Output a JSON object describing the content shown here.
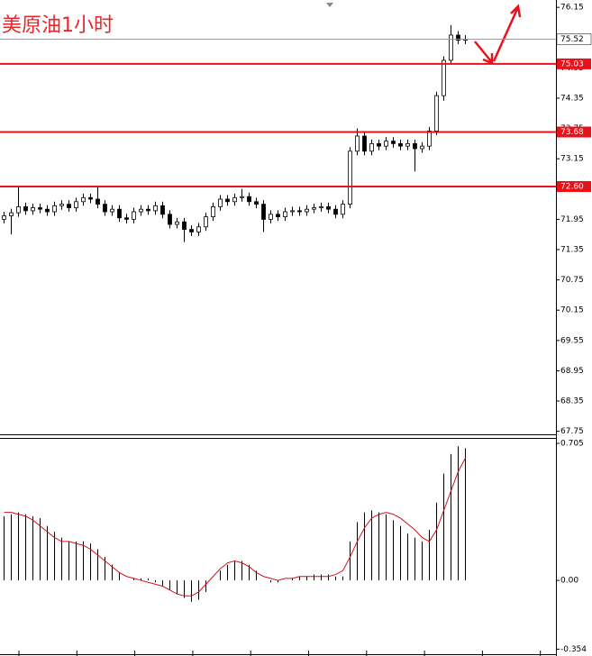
{
  "chart_data": [
    {
      "type": "candlestick",
      "title": "美原油1小时",
      "title_color": "#e8272a",
      "open": [
        71.95,
        72.02,
        72.08,
        72.2,
        72.12,
        72.18,
        72.15,
        72.1,
        72.22,
        72.25,
        72.18,
        72.3,
        72.38,
        72.35,
        72.25,
        72.1,
        72.15,
        71.98,
        71.95,
        72.1,
        72.15,
        72.12,
        72.22,
        72.05,
        71.85,
        71.9,
        71.75,
        71.7,
        71.8,
        72.0,
        72.2,
        72.35,
        72.3,
        72.38,
        72.4,
        72.3,
        72.25,
        71.95,
        72.05,
        72.0,
        72.1,
        72.12,
        72.1,
        72.15,
        72.18,
        72.2,
        72.15,
        72.05,
        72.25,
        73.3,
        73.6,
        73.3,
        73.45,
        73.4,
        73.5,
        73.45,
        73.4,
        73.45,
        73.35,
        73.4,
        73.7,
        74.4,
        75.1,
        75.6,
        75.5
      ],
      "high": [
        72.1,
        72.16,
        72.6,
        72.28,
        72.26,
        72.26,
        72.23,
        72.3,
        72.33,
        72.33,
        72.38,
        72.46,
        72.46,
        72.62,
        72.33,
        72.23,
        72.23,
        72.06,
        72.18,
        72.23,
        72.23,
        72.3,
        72.3,
        72.13,
        71.98,
        71.98,
        71.83,
        71.88,
        72.08,
        72.28,
        72.43,
        72.43,
        72.46,
        72.55,
        72.48,
        72.38,
        72.33,
        72.13,
        72.13,
        72.18,
        72.2,
        72.2,
        72.23,
        72.26,
        72.28,
        72.28,
        72.23,
        72.33,
        73.38,
        73.75,
        73.68,
        73.53,
        73.53,
        73.58,
        73.58,
        73.53,
        73.53,
        73.53,
        73.48,
        73.78,
        74.48,
        75.18,
        75.8,
        75.68,
        75.6
      ],
      "low": [
        71.87,
        71.65,
        72.0,
        72.04,
        72.04,
        72.07,
        72.02,
        72.02,
        72.14,
        72.1,
        72.1,
        72.22,
        72.27,
        72.17,
        72.02,
        72.02,
        71.9,
        71.87,
        71.87,
        72.02,
        72.04,
        72.04,
        71.97,
        71.77,
        71.77,
        71.5,
        71.62,
        71.62,
        71.72,
        71.92,
        72.12,
        72.22,
        72.22,
        72.3,
        72.22,
        72.17,
        71.7,
        71.87,
        71.92,
        71.92,
        72.02,
        72.02,
        72.02,
        72.07,
        72.1,
        72.07,
        71.97,
        71.97,
        72.17,
        73.22,
        73.22,
        73.22,
        73.32,
        73.32,
        73.37,
        73.32,
        73.32,
        72.9,
        73.27,
        73.32,
        73.62,
        74.3,
        75.02,
        75.42,
        75.42
      ],
      "close": [
        72.02,
        72.08,
        72.2,
        72.12,
        72.18,
        72.15,
        72.1,
        72.22,
        72.25,
        72.18,
        72.3,
        72.38,
        72.35,
        72.25,
        72.1,
        72.15,
        71.98,
        71.95,
        72.1,
        72.15,
        72.12,
        72.22,
        72.05,
        71.85,
        71.9,
        71.75,
        71.7,
        71.8,
        72.0,
        72.2,
        72.35,
        72.3,
        72.38,
        72.4,
        72.3,
        72.25,
        71.95,
        72.05,
        72.0,
        72.1,
        72.12,
        72.1,
        72.15,
        72.18,
        72.2,
        72.15,
        72.05,
        72.25,
        73.3,
        73.6,
        73.3,
        73.45,
        73.4,
        73.5,
        73.45,
        73.4,
        73.45,
        73.35,
        73.4,
        73.7,
        74.4,
        75.1,
        75.6,
        75.5,
        75.52
      ],
      "up_color": "#ffffff",
      "down_color": "#000000",
      "ylim": [
        67.69,
        76.26
      ],
      "yticks": [
        76.15,
        75.55,
        74.95,
        74.35,
        73.75,
        73.15,
        72.55,
        71.95,
        71.35,
        70.75,
        70.15,
        69.55,
        68.95,
        68.35,
        67.75
      ],
      "current_price": 75.52,
      "levels": [
        75.03,
        73.68,
        {
          "value": 72.6,
          "label": "72.60"
        }
      ],
      "level_color": "#e8121a"
    },
    {
      "type": "macd",
      "values": [
        0.33,
        0.34,
        0.35,
        0.34,
        0.33,
        0.32,
        0.28,
        0.25,
        0.22,
        0.2,
        0.2,
        0.2,
        0.19,
        0.16,
        0.12,
        0.08,
        0.04,
        0.0,
        0.01,
        0.01,
        0.01,
        -0.01,
        -0.03,
        -0.05,
        -0.07,
        -0.09,
        -0.11,
        -0.1,
        -0.06,
        0.0,
        0.05,
        0.08,
        0.1,
        0.1,
        0.08,
        0.05,
        0.0,
        -0.01,
        -0.01,
        0.0,
        0.01,
        0.02,
        0.02,
        0.03,
        0.03,
        0.03,
        0.02,
        0.02,
        0.2,
        0.3,
        0.35,
        0.36,
        0.35,
        0.34,
        0.31,
        0.28,
        0.24,
        0.22,
        0.2,
        0.26,
        0.4,
        0.55,
        0.65,
        0.69,
        0.68
      ],
      "signal": [
        0.35,
        0.35,
        0.34,
        0.33,
        0.31,
        0.28,
        0.25,
        0.22,
        0.2,
        0.2,
        0.19,
        0.18,
        0.16,
        0.13,
        0.1,
        0.07,
        0.04,
        0.02,
        0.01,
        0.0,
        -0.01,
        -0.02,
        -0.03,
        -0.05,
        -0.07,
        -0.08,
        -0.08,
        -0.06,
        -0.02,
        0.02,
        0.06,
        0.09,
        0.1,
        0.09,
        0.07,
        0.04,
        0.02,
        0.01,
        0.0,
        0.01,
        0.01,
        0.02,
        0.02,
        0.02,
        0.02,
        0.02,
        0.03,
        0.05,
        0.12,
        0.2,
        0.27,
        0.32,
        0.34,
        0.35,
        0.34,
        0.32,
        0.29,
        0.26,
        0.22,
        0.2,
        0.26,
        0.36,
        0.46,
        0.56,
        0.63
      ],
      "color": "#000000",
      "signal_color": "#d0141a",
      "ylim": [
        -0.38,
        0.733
      ],
      "yticks": [
        0.705,
        {
          "value": 0,
          "label": "0.00"
        },
        -0.354
      ]
    }
  ]
}
